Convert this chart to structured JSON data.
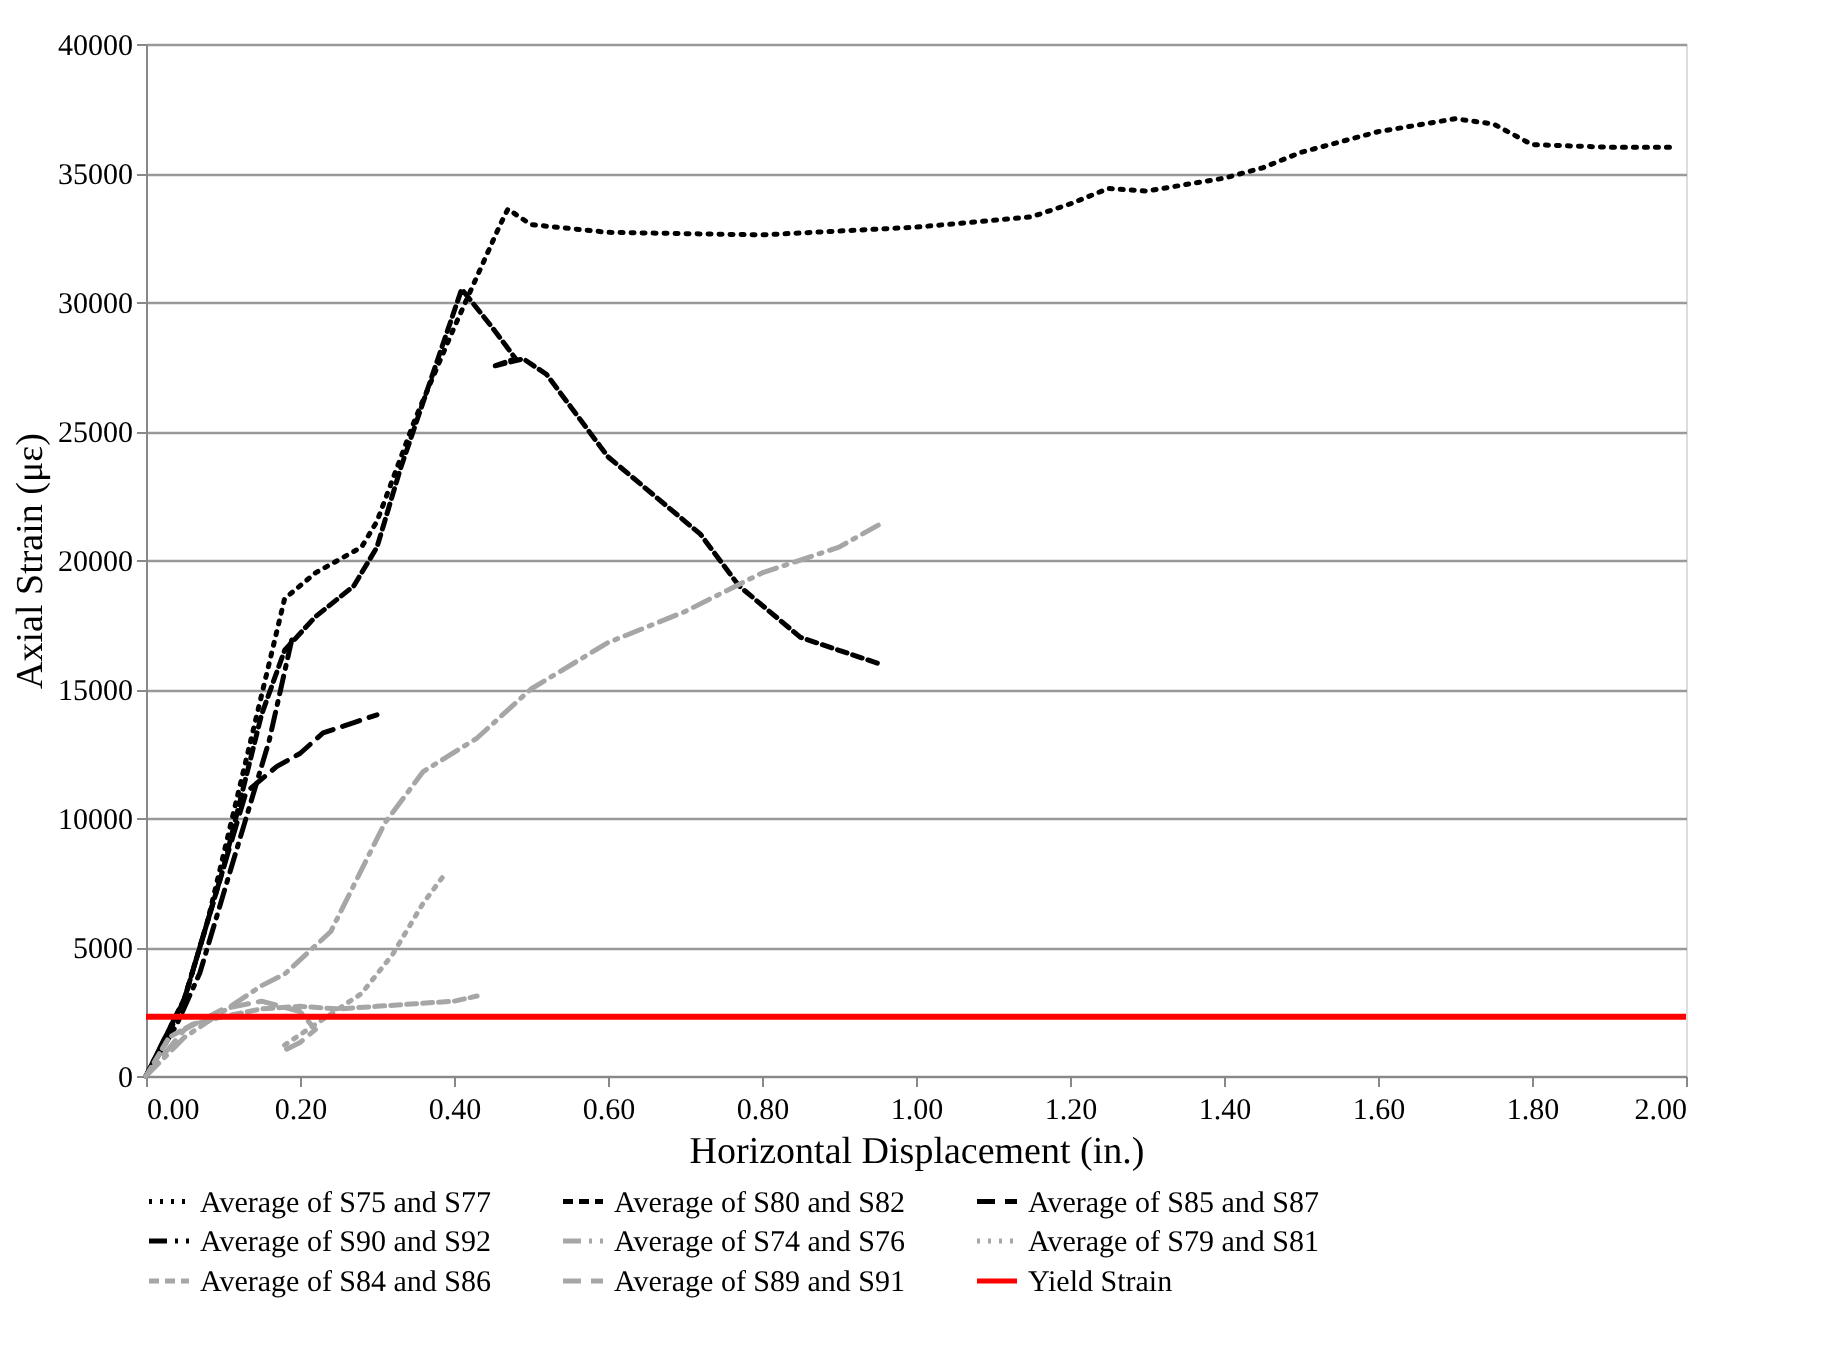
{
  "chart_data": {
    "type": "line",
    "xlabel": "Horizontal Displacement (in.)",
    "ylabel": "Axial Strain (με)",
    "xlim": [
      0,
      2
    ],
    "ylim": [
      0,
      40000
    ],
    "xticks": [
      {
        "value": 0,
        "label": "0.00"
      },
      {
        "value": 0.2,
        "label": "0.20"
      },
      {
        "value": 0.4,
        "label": "0.40"
      },
      {
        "value": 0.6,
        "label": "0.60"
      },
      {
        "value": 0.8,
        "label": "0.80"
      },
      {
        "value": 1,
        "label": "1.00"
      },
      {
        "value": 1.2,
        "label": "1.20"
      },
      {
        "value": 1.4,
        "label": "1.40"
      },
      {
        "value": 1.6,
        "label": "1.60"
      },
      {
        "value": 1.8,
        "label": "1.80"
      },
      {
        "value": 2,
        "label": "2.00"
      }
    ],
    "yticks": [
      0,
      5000,
      10000,
      15000,
      20000,
      25000,
      30000,
      35000,
      40000
    ],
    "grid": "y",
    "legend": "bottom",
    "marker": "none",
    "series": [
      {
        "name": "Average of S75 and S77",
        "color": "#000000",
        "line_style": "dotted",
        "x": [
          0,
          0.02,
          0.05,
          0.08,
          0.12,
          0.16,
          0.18,
          0.2,
          0.22,
          0.28,
          0.3,
          0.35,
          0.4,
          0.43,
          0.46,
          0.47,
          0.5,
          0.6,
          0.8,
          1.0,
          1.15,
          1.2,
          1.25,
          1.3,
          1.4,
          1.45,
          1.5,
          1.6,
          1.7,
          1.75,
          1.8,
          1.9,
          1.98
        ],
        "values": [
          0,
          1000,
          3000,
          6000,
          11000,
          16000,
          18500,
          19000,
          19500,
          20500,
          21500,
          25500,
          29000,
          31000,
          33000,
          33600,
          33000,
          32700,
          32600,
          32900,
          33300,
          33800,
          34400,
          34300,
          34800,
          35200,
          35800,
          36600,
          37100,
          36900,
          36100,
          36000,
          36000
        ]
      },
      {
        "name": "Average of S80 and S82",
        "color": "#000000",
        "line_style": "dashed",
        "x": [
          0,
          0.05,
          0.1,
          0.15,
          0.18,
          0.22,
          0.27,
          0.3,
          0.33,
          0.37,
          0.41,
          0.45,
          0.48,
          0.45,
          0.49,
          0.52,
          0.55,
          0.6,
          0.7,
          0.72,
          0.77,
          0.85,
          0.95
        ],
        "values": [
          0,
          3000,
          8000,
          14000,
          16500,
          17800,
          19000,
          20500,
          23500,
          27000,
          30500,
          29000,
          27800,
          27500,
          27800,
          27200,
          26000,
          24000,
          21500,
          21000,
          19000,
          17000,
          16000
        ]
      },
      {
        "name": "Average of S85 and S87",
        "color": "#000000",
        "line_style": "longdashed",
        "x": [
          0,
          0.05,
          0.1,
          0.13,
          0.17,
          0.2,
          0.23,
          0.27,
          0.3
        ],
        "values": [
          0,
          3000,
          8000,
          11000,
          12000,
          12500,
          13300,
          13700,
          14000
        ]
      },
      {
        "name": "Average of S90 and S92",
        "color": "#000000",
        "line_style": "dashdot",
        "x": [
          0,
          0.04,
          0.07,
          0.1,
          0.13,
          0.16,
          0.19
        ],
        "values": [
          0,
          2000,
          4000,
          7000,
          10000,
          13000,
          17000
        ]
      },
      {
        "name": "Average of S74 and S76",
        "color": "#a6a6a6",
        "line_style": "dashdot",
        "x": [
          0,
          0.05,
          0.1,
          0.15,
          0.18,
          0.24,
          0.31,
          0.36,
          0.43,
          0.5,
          0.6,
          0.7,
          0.8,
          0.9,
          0.96
        ],
        "values": [
          0,
          1500,
          2500,
          3500,
          3950,
          5600,
          9800,
          11800,
          13100,
          15000,
          16800,
          18000,
          19500,
          20500,
          21500
        ]
      },
      {
        "name": "Average of S79 and S81",
        "color": "#a6a6a6",
        "line_style": "dotted",
        "x": [
          0.18,
          0.22,
          0.28,
          0.32,
          0.36,
          0.39
        ],
        "values": [
          1200,
          2000,
          3200,
          4700,
          6700,
          7900
        ]
      },
      {
        "name": "Average of S84 and S86",
        "color": "#a6a6a6",
        "line_style": "dashed",
        "x": [
          0,
          0.03,
          0.06,
          0.1,
          0.15,
          0.2,
          0.25,
          0.3,
          0.35,
          0.4,
          0.43
        ],
        "values": [
          0,
          1500,
          2000,
          2300,
          2600,
          2700,
          2600,
          2700,
          2800,
          2900,
          3100
        ]
      },
      {
        "name": "Average of S89 and S91",
        "color": "#a6a6a6",
        "line_style": "longdashed",
        "x": [
          0,
          0.05,
          0.1,
          0.15,
          0.2,
          0.22,
          0.2,
          0.18
        ],
        "values": [
          0,
          1800,
          2600,
          2900,
          2500,
          1800,
          1300,
          1000
        ]
      }
    ],
    "ref_lines": [
      {
        "axis": "y",
        "value": 2300,
        "label": "Yield Strain",
        "color": "#ff0000",
        "line_style": "solid"
      }
    ]
  }
}
